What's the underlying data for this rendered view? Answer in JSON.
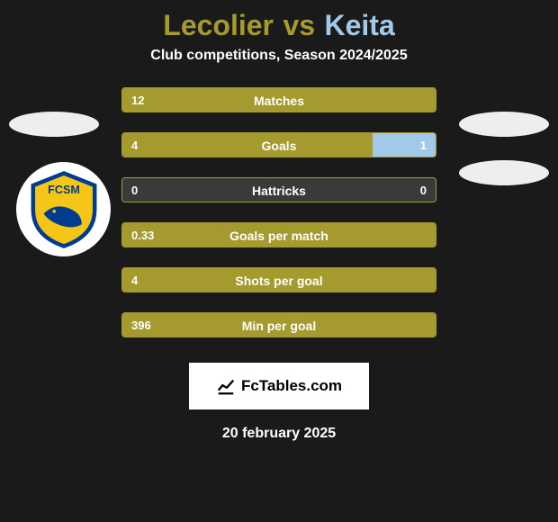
{
  "colors": {
    "player1": "#a59a2e",
    "player2": "#a3c9e8",
    "row_empty": "#3a3a3a",
    "background": "#1a1a1a",
    "text_white": "#ffffff"
  },
  "title": {
    "player1": "Lecolier",
    "vs": "vs",
    "player2": "Keita",
    "fontsize": 32
  },
  "subtitle": "Club competitions, Season 2024/2025",
  "club_badge": {
    "text": "FCSM",
    "bg_color": "#f5c518",
    "border_color": "#003d8f"
  },
  "stats": [
    {
      "label": "Matches",
      "left_val": "12",
      "right_val": "",
      "left_pct": 100,
      "right_pct": 0
    },
    {
      "label": "Goals",
      "left_val": "4",
      "right_val": "1",
      "left_pct": 80,
      "right_pct": 20
    },
    {
      "label": "Hattricks",
      "left_val": "0",
      "right_val": "0",
      "left_pct": 0,
      "right_pct": 0
    },
    {
      "label": "Goals per match",
      "left_val": "0.33",
      "right_val": "",
      "left_pct": 100,
      "right_pct": 0
    },
    {
      "label": "Shots per goal",
      "left_val": "4",
      "right_val": "",
      "left_pct": 100,
      "right_pct": 0
    },
    {
      "label": "Min per goal",
      "left_val": "396",
      "right_val": "",
      "left_pct": 100,
      "right_pct": 0
    }
  ],
  "footer": {
    "logo_text": "FcTables.com",
    "date": "20 february 2025"
  }
}
